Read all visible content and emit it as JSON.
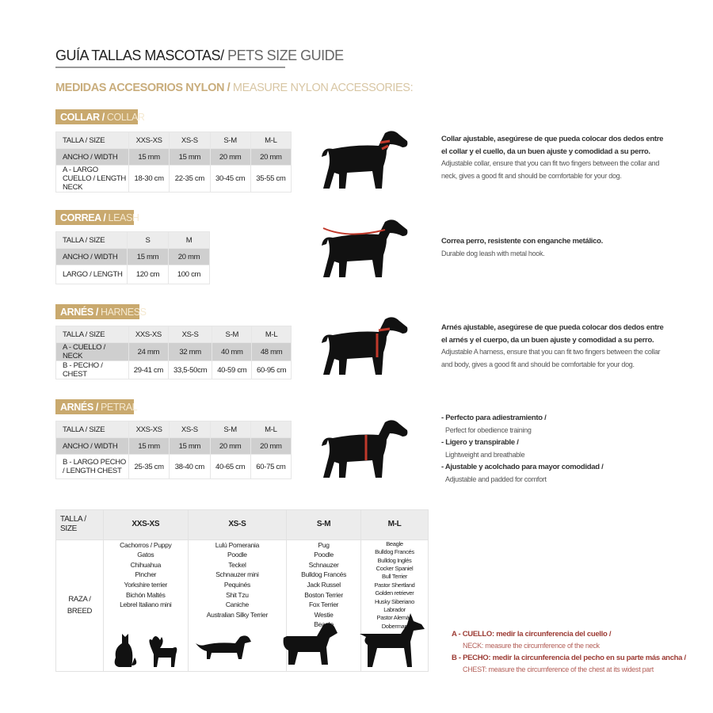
{
  "title": {
    "es": "GUÍA TALLAS MASCOTAS/",
    "en": " PETS SIZE GUIDE"
  },
  "subtitle": {
    "es": "MEDIDAS ACCESORIOS NYLON / ",
    "en": "MEASURE NYLON ACCESSORIES:"
  },
  "collar": {
    "tag_es": "COLLAR / ",
    "tag_en": "COLLAR",
    "header": [
      "TALLA / SIZE",
      "XXS-XS",
      "XS-S",
      "S-M",
      "M-L"
    ],
    "rows": [
      [
        "ANCHO / WIDTH",
        "15 mm",
        "15 mm",
        "20 mm",
        "20 mm"
      ],
      [
        "A - LARGO CUELLO / LENGTH NECK",
        "18-30 cm",
        "22-35 cm",
        "30-45 cm",
        "35-55 cm"
      ]
    ],
    "desc_es": "Collar ajustable, asegúrese de que pueda colocar dos dedos entre el collar y el cuello, da un buen ajuste y comodidad a su perro.",
    "desc_en": "Adjustable collar, ensure that you can fit two fingers between the collar and neck, gives a good fit and should be comfortable for your dog."
  },
  "leash": {
    "tag_es": "CORREA / ",
    "tag_en": "LEASH",
    "header": [
      "TALLA / SIZE",
      "S",
      "M"
    ],
    "rows": [
      [
        "ANCHO / WIDTH",
        "15 mm",
        "20 mm"
      ],
      [
        "LARGO / LENGTH",
        "120 cm",
        "100 cm"
      ]
    ],
    "desc_es": "Correa perro, resistente con enganche metálico.",
    "desc_en": "Durable dog leash with metal hook."
  },
  "harness": {
    "tag_es": "ARNÉS / ",
    "tag_en": "HARNESS",
    "header": [
      "TALLA / SIZE",
      "XXS-XS",
      "XS-S",
      "S-M",
      "M-L"
    ],
    "rows": [
      [
        "A - CUELLO / NECK",
        "24 mm",
        "32 mm",
        "40 mm",
        "48 mm"
      ],
      [
        "B - PECHO / CHEST",
        "29-41 cm",
        "33,5-50cm",
        "40-59 cm",
        "60-95 cm"
      ]
    ],
    "desc_es": "Arnés ajustable, asegúrese de que pueda colocar dos dedos entre el arnés y el cuerpo, da un buen ajuste y comodidad a su perro.",
    "desc_en": "Adjustable A harness, ensure that you can fit two fingers between the collar and body, gives a good fit and should be comfortable for your dog."
  },
  "petral": {
    "tag_es": "ARNÉS / ",
    "tag_en": "PETRAL",
    "header": [
      "TALLA / SIZE",
      "XXS-XS",
      "XS-S",
      "S-M",
      "M-L"
    ],
    "rows": [
      [
        "ANCHO / WIDTH",
        "15 mm",
        "15 mm",
        "20 mm",
        "20 mm"
      ],
      [
        "B - LARGO PECHO / LENGTH CHEST",
        "25-35 cm",
        "38-40 cm",
        "40-65 cm",
        "60-75 cm"
      ]
    ],
    "bullets": [
      {
        "es": "- Perfecto para adiestramiento /",
        "en": "Perfect for obedience training"
      },
      {
        "es": "- Ligero y transpirable /",
        "en": "Lightweight and breathable"
      },
      {
        "es": "- Ajustable y acolchado para mayor comodidad /",
        "en": "Adjustable and padded for comfort"
      }
    ]
  },
  "breeds": {
    "header": [
      "TALLA /  SIZE",
      "XXS-XS",
      "XS-S",
      "S-M",
      "M-L"
    ],
    "row_label": "RAZA / BREED",
    "cols": [
      [
        "Cachorros / Puppy",
        "Gatos",
        "Chihuahua",
        "Pincher",
        "Yorkshire terrier",
        "Bichón Maltés",
        "Lebrel Italiano mini"
      ],
      [
        "Lulú Pomerania",
        "Poodle",
        "Teckel",
        "Schnauzer mini",
        "Pequinés",
        "Shit Tzu",
        "Caniche",
        "Australian Silky Terrier"
      ],
      [
        "Pug",
        "Poodle",
        "Schnauzer",
        "Bulldog Francés",
        "Jack Russel",
        "Boston Terrier",
        "Fox Terrier",
        "Westie",
        "Beagle"
      ],
      [
        "Beagle",
        "Bulldog Francés",
        "Bulldog Inglés",
        "Cocker Spaniel",
        "Bull Terrier",
        "Pastor Shertland",
        "Golden retriever",
        "Husky Siberiano",
        "Labrador",
        "Pastor Alemán",
        "Doberman"
      ]
    ]
  },
  "notes": [
    {
      "es": "A - CUELLO: medir la circunferencia del cuello /",
      "en": "NECK: measure the circumference of the neck"
    },
    {
      "es": "B - PECHO: medir la circunferencia del pecho en su parte más ancha /",
      "en": "CHEST: measure the circumference of the chest at its widest part"
    }
  ],
  "colors": {
    "gold": "#c9a96e",
    "accent_red": "#c0392b",
    "note_red": "#9c3b34"
  }
}
